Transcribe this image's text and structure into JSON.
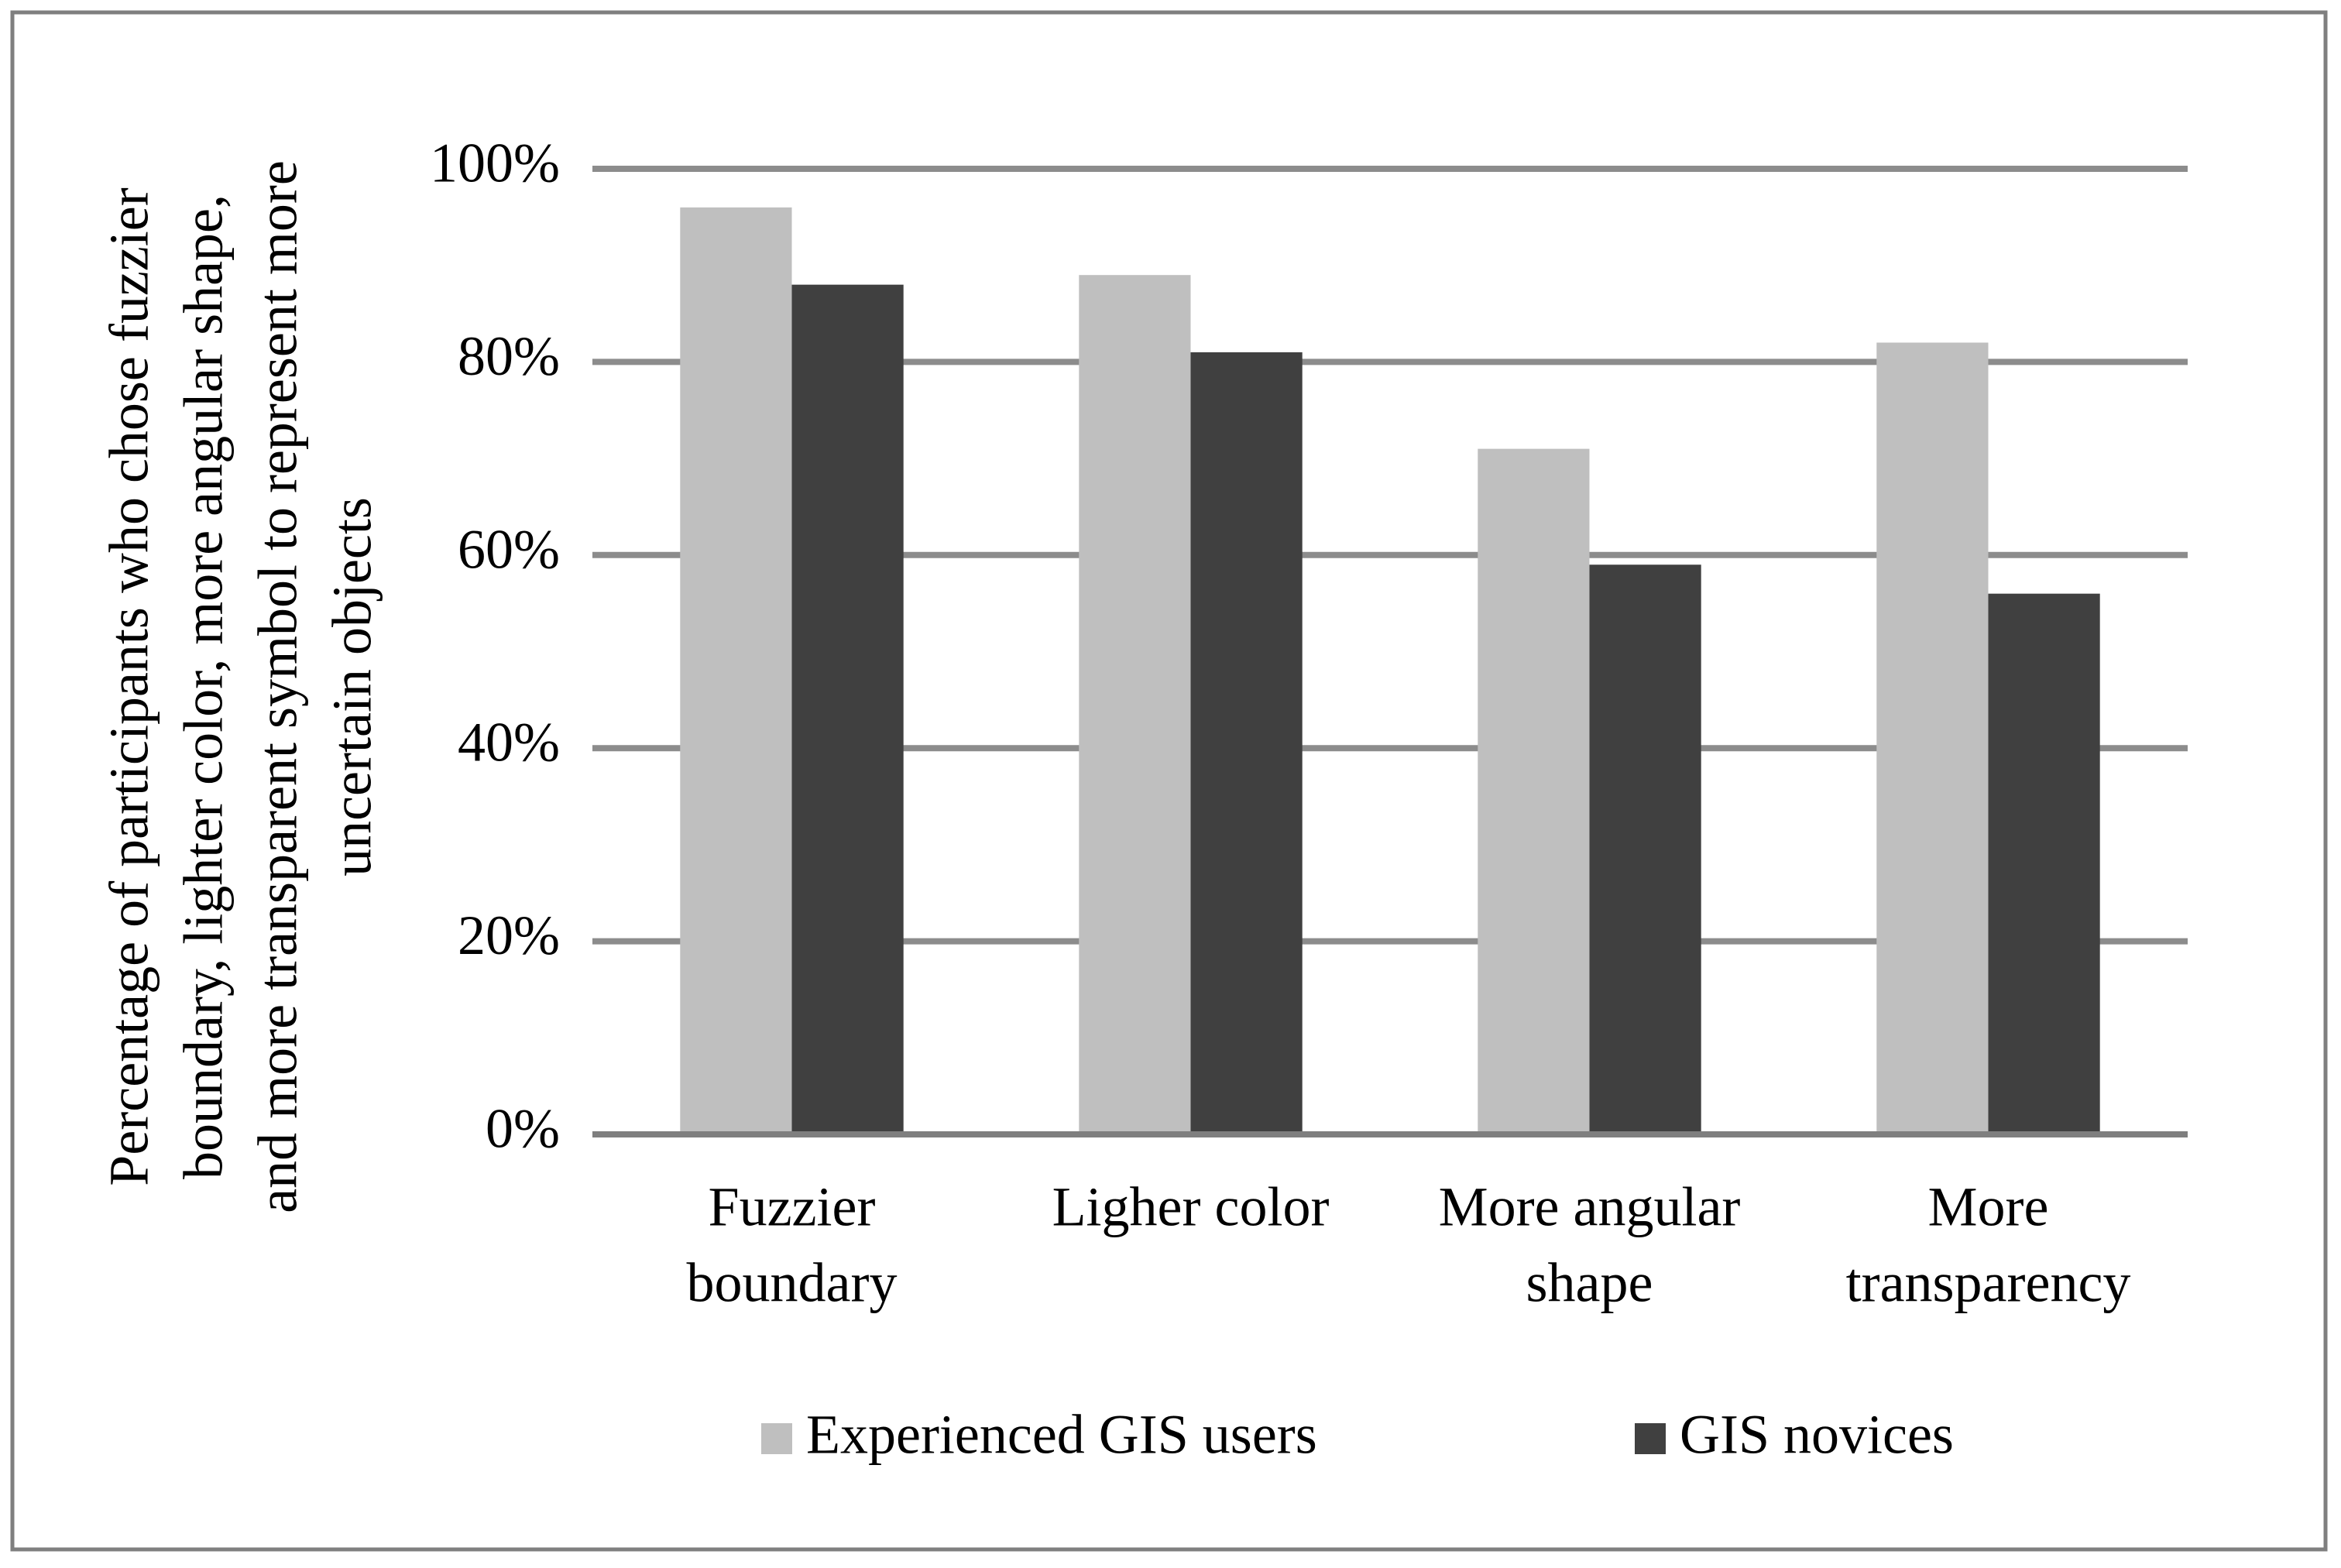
{
  "chart_data": {
    "type": "bar",
    "ylabel": [
      "Percentage of participants who chose fuzzier",
      "boundary, lighter color, more angular shape,",
      "and more transparent symbol to represent more",
      "uncertain objects"
    ],
    "categories": [
      [
        "Fuzzier",
        "boundary"
      ],
      [
        "Ligher color"
      ],
      [
        "More angular",
        "shape"
      ],
      [
        "More",
        "transparency"
      ]
    ],
    "series": [
      {
        "name": "Experienced GIS users",
        "color": "#bfbfbf",
        "values": [
          96,
          89,
          71,
          82
        ]
      },
      {
        "name": "GIS novices",
        "color": "#404040",
        "values": [
          88,
          81,
          59,
          56
        ]
      }
    ],
    "ylim": [
      0,
      100
    ],
    "yticks": [
      {
        "value": 0,
        "label": "0%"
      },
      {
        "value": 20,
        "label": "20%"
      },
      {
        "value": 40,
        "label": "40%"
      },
      {
        "value": 60,
        "label": "60%"
      },
      {
        "value": 80,
        "label": "80%"
      },
      {
        "value": 100,
        "label": "100%"
      }
    ],
    "grid": true,
    "legend": "bottom"
  }
}
